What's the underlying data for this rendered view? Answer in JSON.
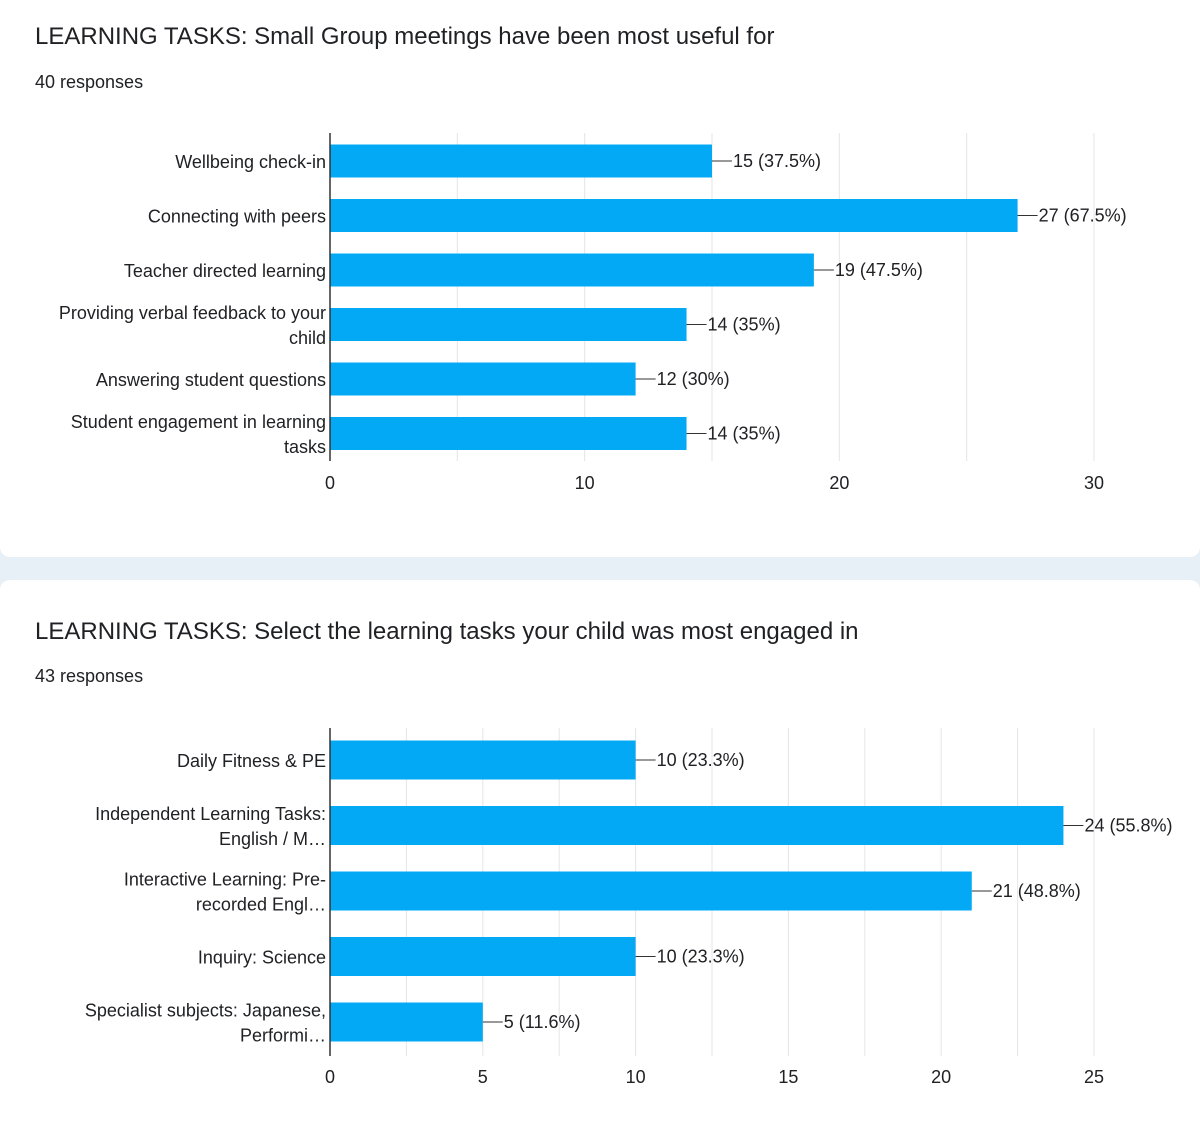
{
  "colors": {
    "bar": "#03a9f4",
    "grid": "#e5e5e5",
    "axis": "#333333",
    "text": "#202124",
    "page_bg": "#e8f0f7"
  },
  "chart_data": [
    {
      "type": "bar",
      "orientation": "horizontal",
      "title": "LEARNING TASKS: Small Group meetings have been most useful for",
      "subtitle": "40 responses",
      "categories": [
        "Wellbeing check-in",
        "Connecting with peers",
        "Teacher directed learning",
        "Providing verbal feedback to your child",
        "Answering student questions",
        "Student engagement in learning tasks"
      ],
      "category_lines": [
        [
          "Wellbeing check-in"
        ],
        [
          "Connecting with peers"
        ],
        [
          "Teacher directed learning"
        ],
        [
          "Providing verbal feedback to your",
          "child"
        ],
        [
          "Answering student questions"
        ],
        [
          "Student engagement in learning",
          "tasks"
        ]
      ],
      "values": [
        15,
        27,
        19,
        14,
        12,
        14
      ],
      "data_labels": [
        "15 (37.5%)",
        "27 (67.5%)",
        "19 (47.5%)",
        "14 (35%)",
        "12 (30%)",
        "14 (35%)"
      ],
      "xlim": [
        0,
        30
      ],
      "xticks": [
        0,
        10,
        20,
        30
      ],
      "xlabel": "",
      "ylabel": "",
      "grid": true
    },
    {
      "type": "bar",
      "orientation": "horizontal",
      "title": "LEARNING TASKS: Select the learning tasks your child was most engaged in",
      "subtitle": "43 responses",
      "categories": [
        "Daily Fitness & PE",
        "Independent Learning Tasks: English / M…",
        "Interactive Learning: Pre-recorded Engl…",
        "Inquiry: Science",
        "Specialist subjects: Japanese, Performi…"
      ],
      "category_lines": [
        [
          "Daily Fitness & PE"
        ],
        [
          "Independent Learning Tasks:",
          "English / M…"
        ],
        [
          "Interactive Learning: Pre-",
          "recorded Engl…"
        ],
        [
          "Inquiry: Science"
        ],
        [
          "Specialist subjects: Japanese,",
          "Performi…"
        ]
      ],
      "values": [
        10,
        24,
        21,
        10,
        5
      ],
      "data_labels": [
        "10 (23.3%)",
        "24 (55.8%)",
        "21 (48.8%)",
        "10 (23.3%)",
        "5 (11.6%)"
      ],
      "xlim": [
        0,
        25
      ],
      "xticks": [
        0,
        5,
        10,
        15,
        20,
        25
      ],
      "xlabel": "",
      "ylabel": "",
      "grid": true
    }
  ]
}
